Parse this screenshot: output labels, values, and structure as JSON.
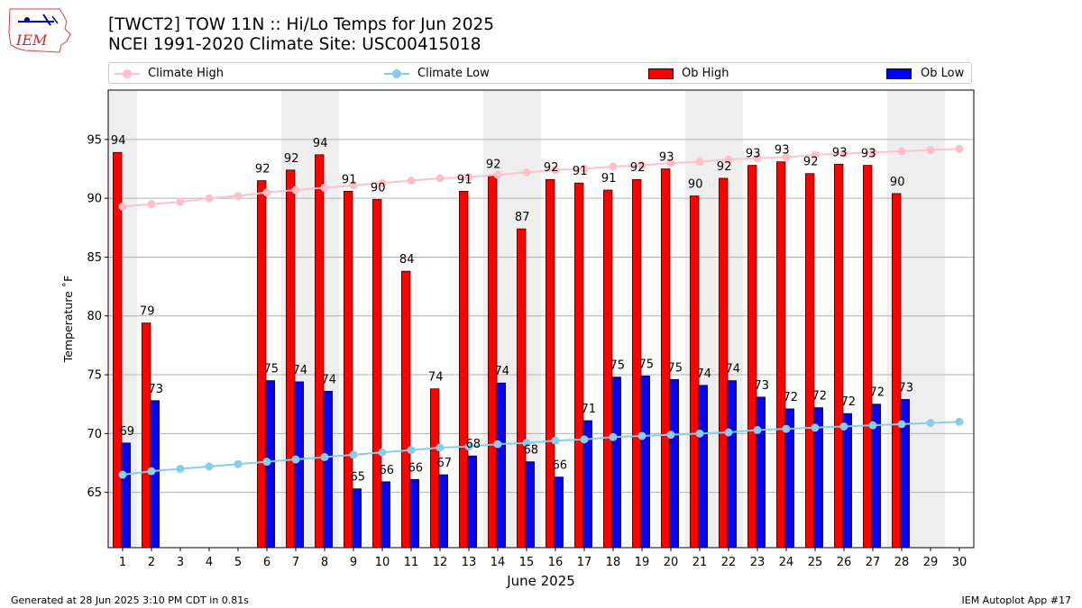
{
  "header": {
    "logo_text": "IEM",
    "title_line1": "[TWCT2] TOW 11N :: Hi/Lo Temps for Jun 2025",
    "title_line2": "NCEI 1991-2020 Climate Site: USC00415018"
  },
  "legend": {
    "climate_high": "Climate High",
    "climate_low": "Climate Low",
    "ob_high": "Ob High",
    "ob_low": "Ob Low"
  },
  "footer": {
    "left": "Generated at 28 Jun 2025 3:10 PM CDT in 0.81s",
    "right": "IEM Autoplot App #17"
  },
  "colors": {
    "ob_high": "#ff0000",
    "ob_low": "#0000ff",
    "climate_high": "#ffc0cb",
    "climate_low": "#87ceeb",
    "weekend_shade": "#eeeeee",
    "grid": "#b0b0b0"
  },
  "chart_data": {
    "type": "bar",
    "xlabel": "June 2025",
    "ylabel": "Temperature ˚F",
    "ylim": [
      60.3,
      99.2
    ],
    "yticks": [
      65,
      70,
      75,
      80,
      85,
      90,
      95
    ],
    "grid": "horizontal",
    "legend_position": "top",
    "categories": [
      "1",
      "2",
      "3",
      "4",
      "5",
      "6",
      "7",
      "8",
      "9",
      "10",
      "11",
      "12",
      "13",
      "14",
      "15",
      "16",
      "17",
      "18",
      "19",
      "20",
      "21",
      "22",
      "23",
      "24",
      "25",
      "26",
      "27",
      "28",
      "29",
      "30"
    ],
    "weekend_days": [
      1,
      7,
      8,
      14,
      15,
      21,
      22,
      28,
      29
    ],
    "series": [
      {
        "name": "Ob High",
        "kind": "bar",
        "values": [
          93.9,
          79.4,
          null,
          null,
          null,
          91.5,
          92.4,
          93.7,
          90.6,
          89.9,
          83.8,
          73.8,
          90.6,
          91.9,
          87.4,
          91.6,
          91.3,
          90.7,
          91.6,
          92.5,
          90.2,
          91.7,
          92.8,
          93.1,
          92.1,
          92.9,
          92.8,
          90.4,
          null,
          null
        ],
        "labels": [
          "94",
          "79",
          null,
          null,
          null,
          "92",
          "92",
          "94",
          "91",
          "90",
          "84",
          "74",
          "91",
          "92",
          "87",
          "92",
          "91",
          "91",
          "92",
          "93",
          "90",
          "92",
          "93",
          "93",
          "92",
          "93",
          "93",
          "90",
          null,
          null
        ]
      },
      {
        "name": "Ob Low",
        "kind": "bar",
        "values": [
          69.2,
          72.8,
          null,
          null,
          null,
          74.5,
          74.4,
          73.6,
          65.3,
          65.9,
          66.1,
          66.5,
          68.1,
          74.3,
          67.6,
          66.3,
          71.1,
          74.8,
          74.9,
          74.6,
          74.1,
          74.5,
          73.1,
          72.1,
          72.2,
          71.7,
          72.5,
          72.9,
          null,
          null
        ],
        "labels": [
          "69",
          "73",
          null,
          null,
          null,
          "75",
          "74",
          "74",
          "65",
          "66",
          "66",
          "67",
          "68",
          "74",
          "68",
          "66",
          "71",
          "75",
          "75",
          "75",
          "74",
          "74",
          "73",
          "72",
          "72",
          "72",
          "72",
          "73",
          null,
          null
        ]
      },
      {
        "name": "Climate High",
        "kind": "line",
        "values": [
          89.3,
          89.5,
          89.7,
          90.0,
          90.2,
          90.5,
          90.7,
          90.9,
          91.1,
          91.3,
          91.5,
          91.7,
          91.8,
          92.0,
          92.2,
          92.4,
          92.5,
          92.7,
          92.8,
          93.0,
          93.1,
          93.3,
          93.4,
          93.5,
          93.7,
          93.8,
          93.9,
          94.0,
          94.1,
          94.2
        ]
      },
      {
        "name": "Climate Low",
        "kind": "line",
        "values": [
          66.5,
          66.8,
          67.0,
          67.2,
          67.4,
          67.6,
          67.8,
          68.0,
          68.2,
          68.4,
          68.6,
          68.8,
          68.9,
          69.1,
          69.2,
          69.4,
          69.5,
          69.7,
          69.8,
          69.9,
          70.0,
          70.1,
          70.3,
          70.4,
          70.5,
          70.6,
          70.7,
          70.8,
          70.9,
          71.0
        ]
      }
    ]
  }
}
